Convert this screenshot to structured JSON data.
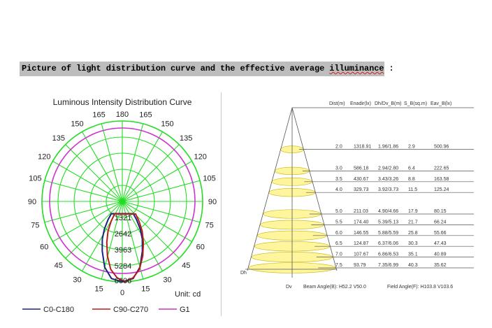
{
  "heading": {
    "prefix": "Picture of light distribution curve and the effective average ",
    "underlined": "illuminance",
    "suffix": " :"
  },
  "polar_chart": {
    "title": "Luminous Intensity Distribution Curve",
    "unit_label": "Unit: cd",
    "angle_labels": {
      "top": "180",
      "bottom": "0",
      "left": [
        "165",
        "150",
        "135",
        "120",
        "105",
        "90",
        "75",
        "60",
        "45",
        "30",
        "15"
      ],
      "right": [
        "165",
        "150",
        "135",
        "120",
        "105",
        "90",
        "75",
        "60",
        "45",
        "30",
        "15"
      ]
    },
    "radial_labels": [
      "1321",
      "2642",
      "3963",
      "5284",
      "6606"
    ],
    "legend": [
      {
        "label": "C0-C180",
        "color": "#1a237e"
      },
      {
        "label": "C90-C270",
        "color": "#b71c1c"
      },
      {
        "label": "G1",
        "color": "#cc33cc"
      }
    ],
    "grid_color": "#22dd22"
  },
  "cone_chart": {
    "headers": [
      "Dist(m)",
      "Enadir(lx)",
      "Dh/Dv_B(m)",
      "S_B(sq.m)",
      "Eav_B(lx)"
    ],
    "rows": [
      {
        "dist": "2.0",
        "enadir": "1318.91",
        "dhdv": "1.96/1.86",
        "sb": "2.9",
        "eav": "500.96"
      },
      {
        "dist": "3.0",
        "enadir": "586.18",
        "dhdv": "2.94/2.80",
        "sb": "6.4",
        "eav": "222.65"
      },
      {
        "dist": "3.5",
        "enadir": "430.67",
        "dhdv": "3.43/3.26",
        "sb": "8.8",
        "eav": "163.58"
      },
      {
        "dist": "4.0",
        "enadir": "329.73",
        "dhdv": "3.92/3.73",
        "sb": "11.5",
        "eav": "125.24"
      },
      {
        "dist": "5.0",
        "enadir": "211.03",
        "dhdv": "4.90/4.66",
        "sb": "17.9",
        "eav": "80.15"
      },
      {
        "dist": "5.5",
        "enadir": "174.40",
        "dhdv": "5.39/5.13",
        "sb": "21.7",
        "eav": "66.24"
      },
      {
        "dist": "6.0",
        "enadir": "146.55",
        "dhdv": "5.88/5.59",
        "sb": "25.8",
        "eav": "55.66"
      },
      {
        "dist": "6.5",
        "enadir": "124.87",
        "dhdv": "6.37/6.06",
        "sb": "30.3",
        "eav": "47.43"
      },
      {
        "dist": "7.0",
        "enadir": "107.67",
        "dhdv": "6.86/6.53",
        "sb": "35.1",
        "eav": "40.89"
      },
      {
        "dist": "7.5",
        "enadir": "93.79",
        "dhdv": "7.35/6.99",
        "sb": "40.3",
        "eav": "35.62"
      }
    ],
    "dh_label": "Dh",
    "dv_label": "Dv",
    "beam_angle": "Beam Angle(B): H52.2 V50.0",
    "field_angle": "Field Angle(F): H103.8 V103.6",
    "ellipse_fill": "#fff59d",
    "ellipse_stroke": "#c8b400"
  }
}
